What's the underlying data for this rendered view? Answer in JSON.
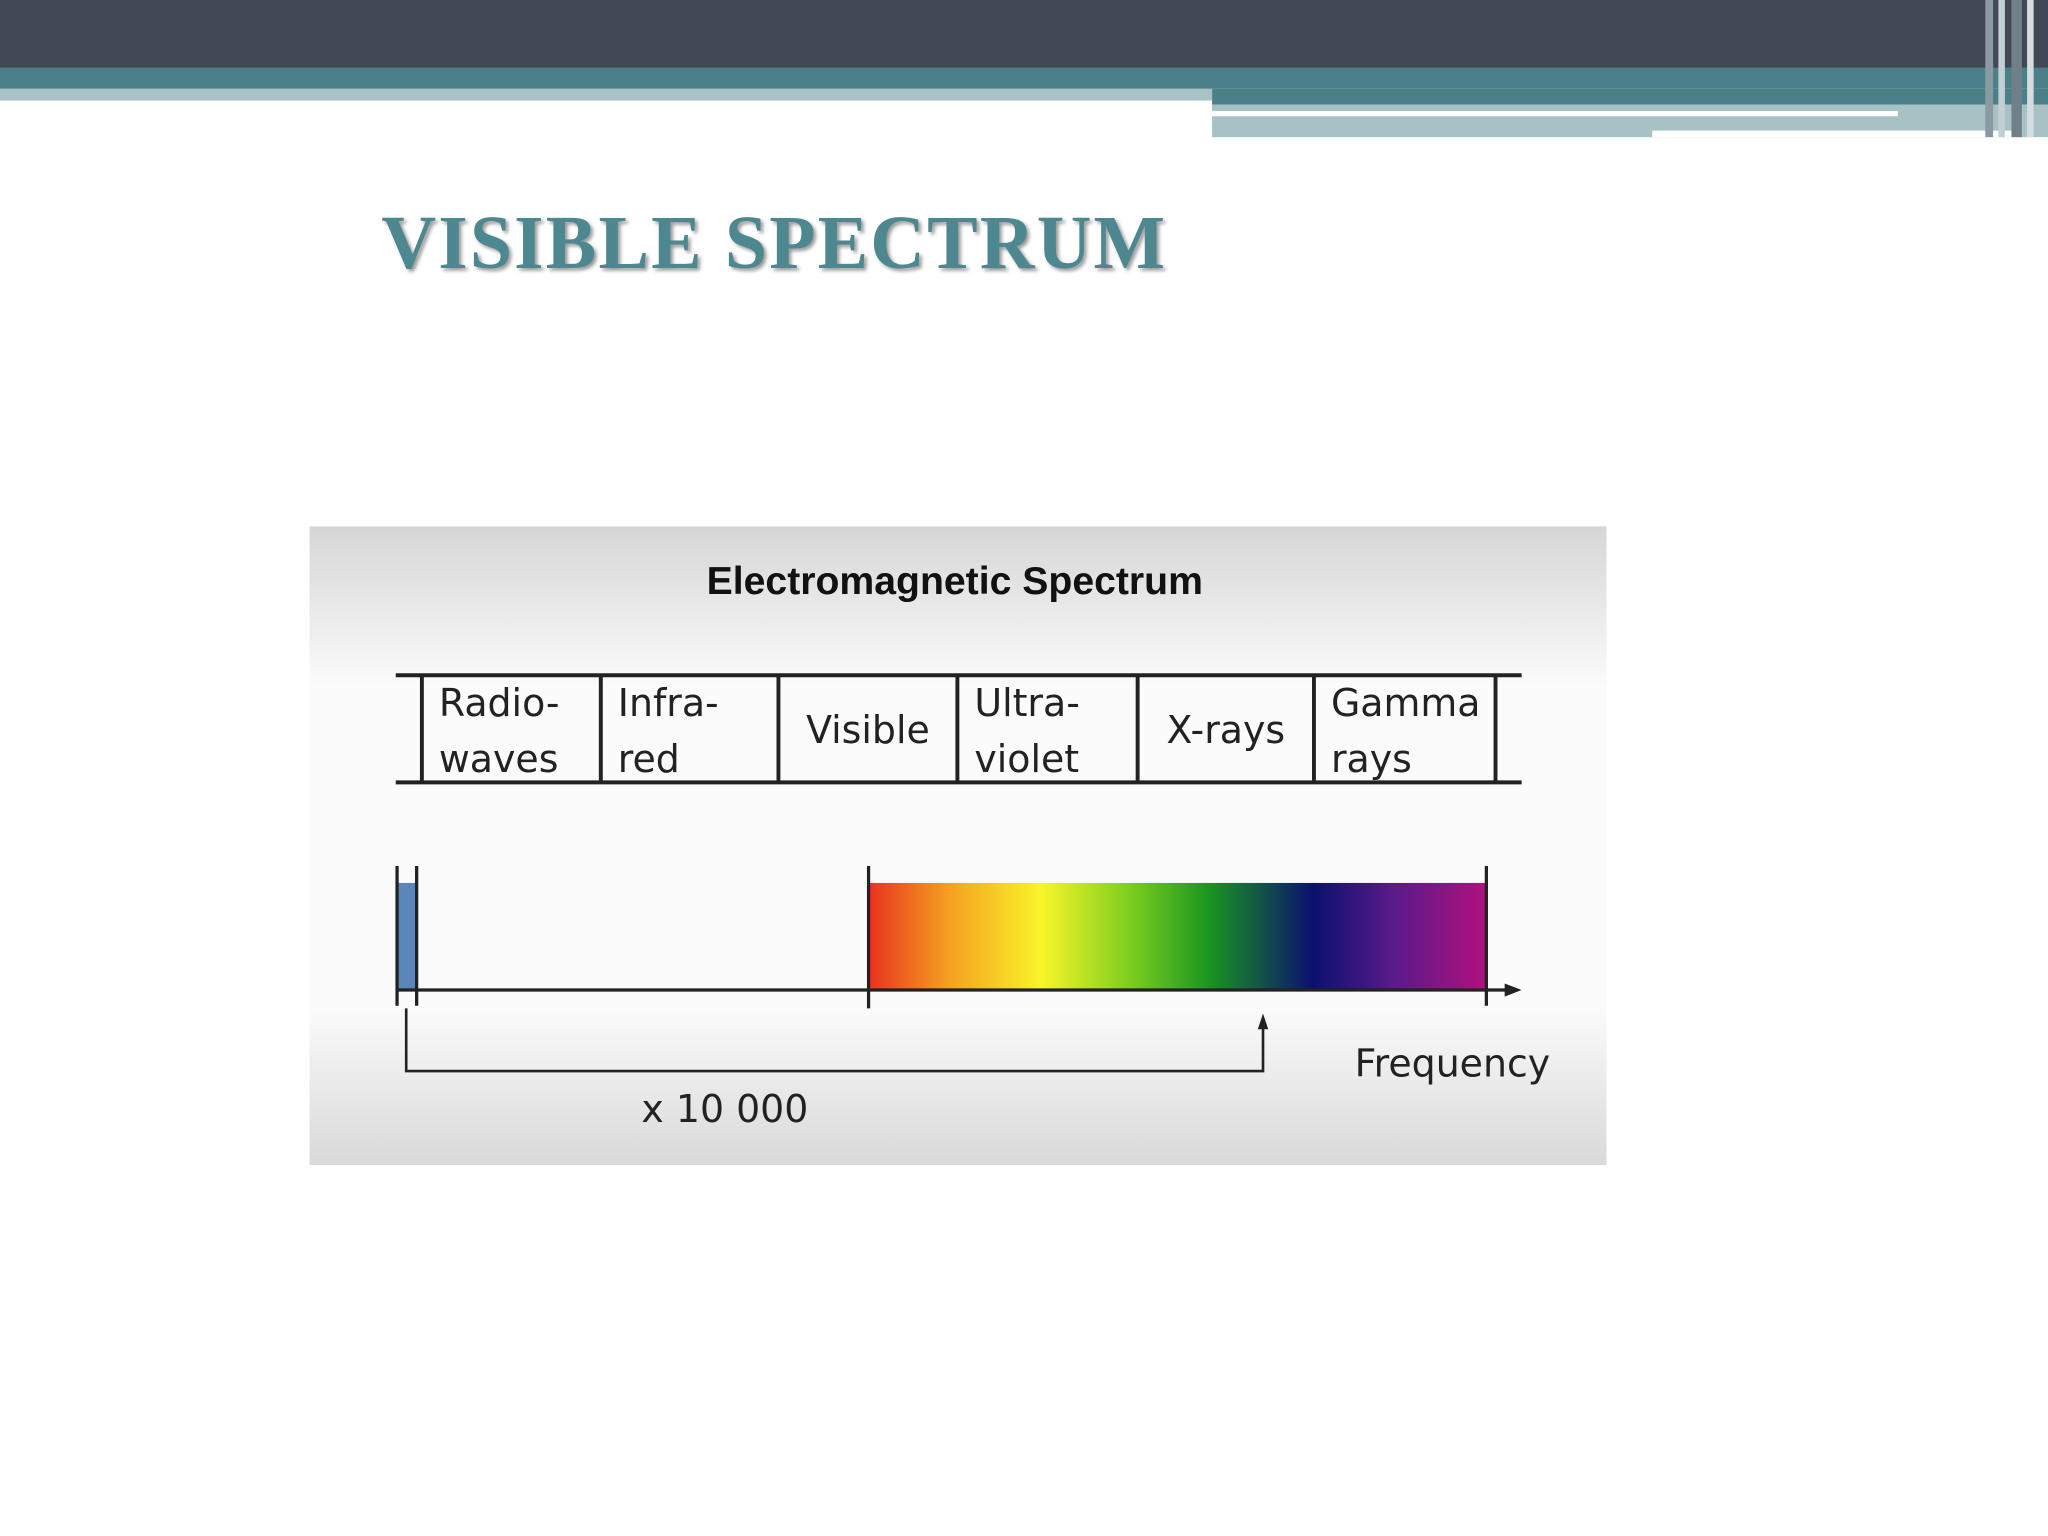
{
  "header": {
    "title": "VISIBLE SPECTRUM"
  },
  "figure": {
    "title": "Electromagnetic Spectrum",
    "bands": [
      [
        "Radio-",
        "waves"
      ],
      [
        "Infra-",
        "red"
      ],
      [
        "Visible"
      ],
      [
        "Ultra-",
        "violet"
      ],
      [
        "X-rays"
      ],
      [
        "Gamma",
        "rays"
      ]
    ],
    "axis_label": "Frequency",
    "ratio_label": "x 10 000"
  }
}
